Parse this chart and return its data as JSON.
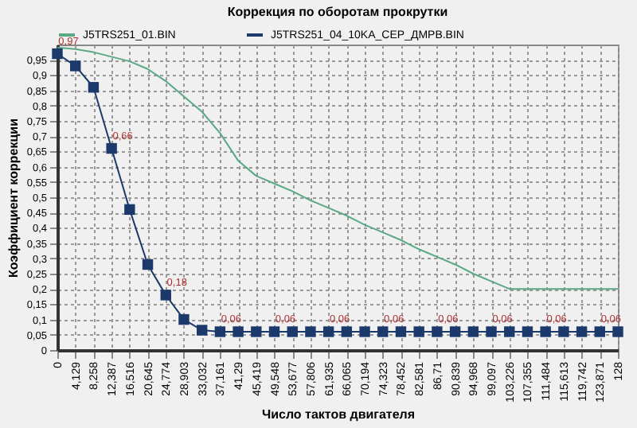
{
  "chart_data": {
    "type": "line",
    "title": "Коррекция по оборотам прокрутки",
    "xlabel": "Число тактов двигателя",
    "ylabel": "Коэффициент коррекции",
    "categories": [
      "0",
      "4,129",
      "8,258",
      "12,387",
      "16,516",
      "20,645",
      "24,774",
      "28,903",
      "33,032",
      "37,161",
      "41,29",
      "45,419",
      "49,548",
      "53,677",
      "57,806",
      "61,935",
      "66,065",
      "70,194",
      "74,323",
      "78,452",
      "82,581",
      "86,71",
      "90,839",
      "94,968",
      "99,097",
      "103,226",
      "107,355",
      "111,484",
      "115,613",
      "119,742",
      "123,871",
      "128"
    ],
    "series": [
      {
        "name": "J5TRS251_01.BIN",
        "color": "#5aa884",
        "marker": "none",
        "values": [
          0.99,
          0.985,
          0.975,
          0.96,
          0.945,
          0.92,
          0.88,
          0.83,
          0.78,
          0.71,
          0.62,
          0.57,
          0.545,
          0.52,
          0.49,
          0.465,
          0.44,
          0.41,
          0.385,
          0.36,
          0.33,
          0.305,
          0.28,
          0.25,
          0.225,
          0.2,
          0.2,
          0.2,
          0.2,
          0.2,
          0.2,
          0.2
        ]
      },
      {
        "name": "J5TRS251_04_10KA_CEP_ДМРВ.BIN",
        "color": "#1b3a6b",
        "marker": "square",
        "values": [
          0.97,
          0.93,
          0.86,
          0.66,
          0.46,
          0.28,
          0.18,
          0.1,
          0.065,
          0.06,
          0.06,
          0.06,
          0.06,
          0.06,
          0.06,
          0.06,
          0.06,
          0.06,
          0.06,
          0.06,
          0.06,
          0.06,
          0.06,
          0.06,
          0.06,
          0.06,
          0.06,
          0.06,
          0.06,
          0.06,
          0.06,
          0.06
        ],
        "value_labels": [
          "0,97",
          null,
          null,
          "0,66",
          null,
          null,
          "0,18",
          null,
          null,
          "0,06",
          null,
          null,
          "0,06",
          null,
          null,
          "0,06",
          null,
          null,
          "0,06",
          null,
          null,
          "0,06",
          null,
          null,
          "0,06",
          null,
          null,
          "0,06",
          null,
          null,
          "0,06",
          null
        ]
      }
    ],
    "ylim": [
      0,
      1
    ],
    "yticks": [
      0,
      {
        "value": 0.05,
        "label": "0,05"
      },
      {
        "value": 0.1,
        "label": "0,1"
      },
      {
        "value": 0.15,
        "label": "0,15"
      },
      {
        "value": 0.2,
        "label": "0,2"
      },
      {
        "value": 0.25,
        "label": "0,25"
      },
      {
        "value": 0.3,
        "label": "0,3"
      },
      {
        "value": 0.35,
        "label": "0,35"
      },
      {
        "value": 0.4,
        "label": "0,4"
      },
      {
        "value": 0.45,
        "label": "0,45"
      },
      {
        "value": 0.5,
        "label": "0,5"
      },
      {
        "value": 0.55,
        "label": "0,55"
      },
      {
        "value": 0.6,
        "label": "0,6"
      },
      {
        "value": 0.65,
        "label": "0,65"
      },
      {
        "value": 0.7,
        "label": "0,7"
      },
      {
        "value": 0.75,
        "label": "0,75"
      },
      {
        "value": 0.8,
        "label": "0,8"
      },
      {
        "value": 0.85,
        "label": "0,85"
      },
      {
        "value": 0.9,
        "label": "0,9"
      },
      {
        "value": 0.95,
        "label": "0,95"
      }
    ],
    "grid": true,
    "legend": "top",
    "line_style": "solid"
  }
}
